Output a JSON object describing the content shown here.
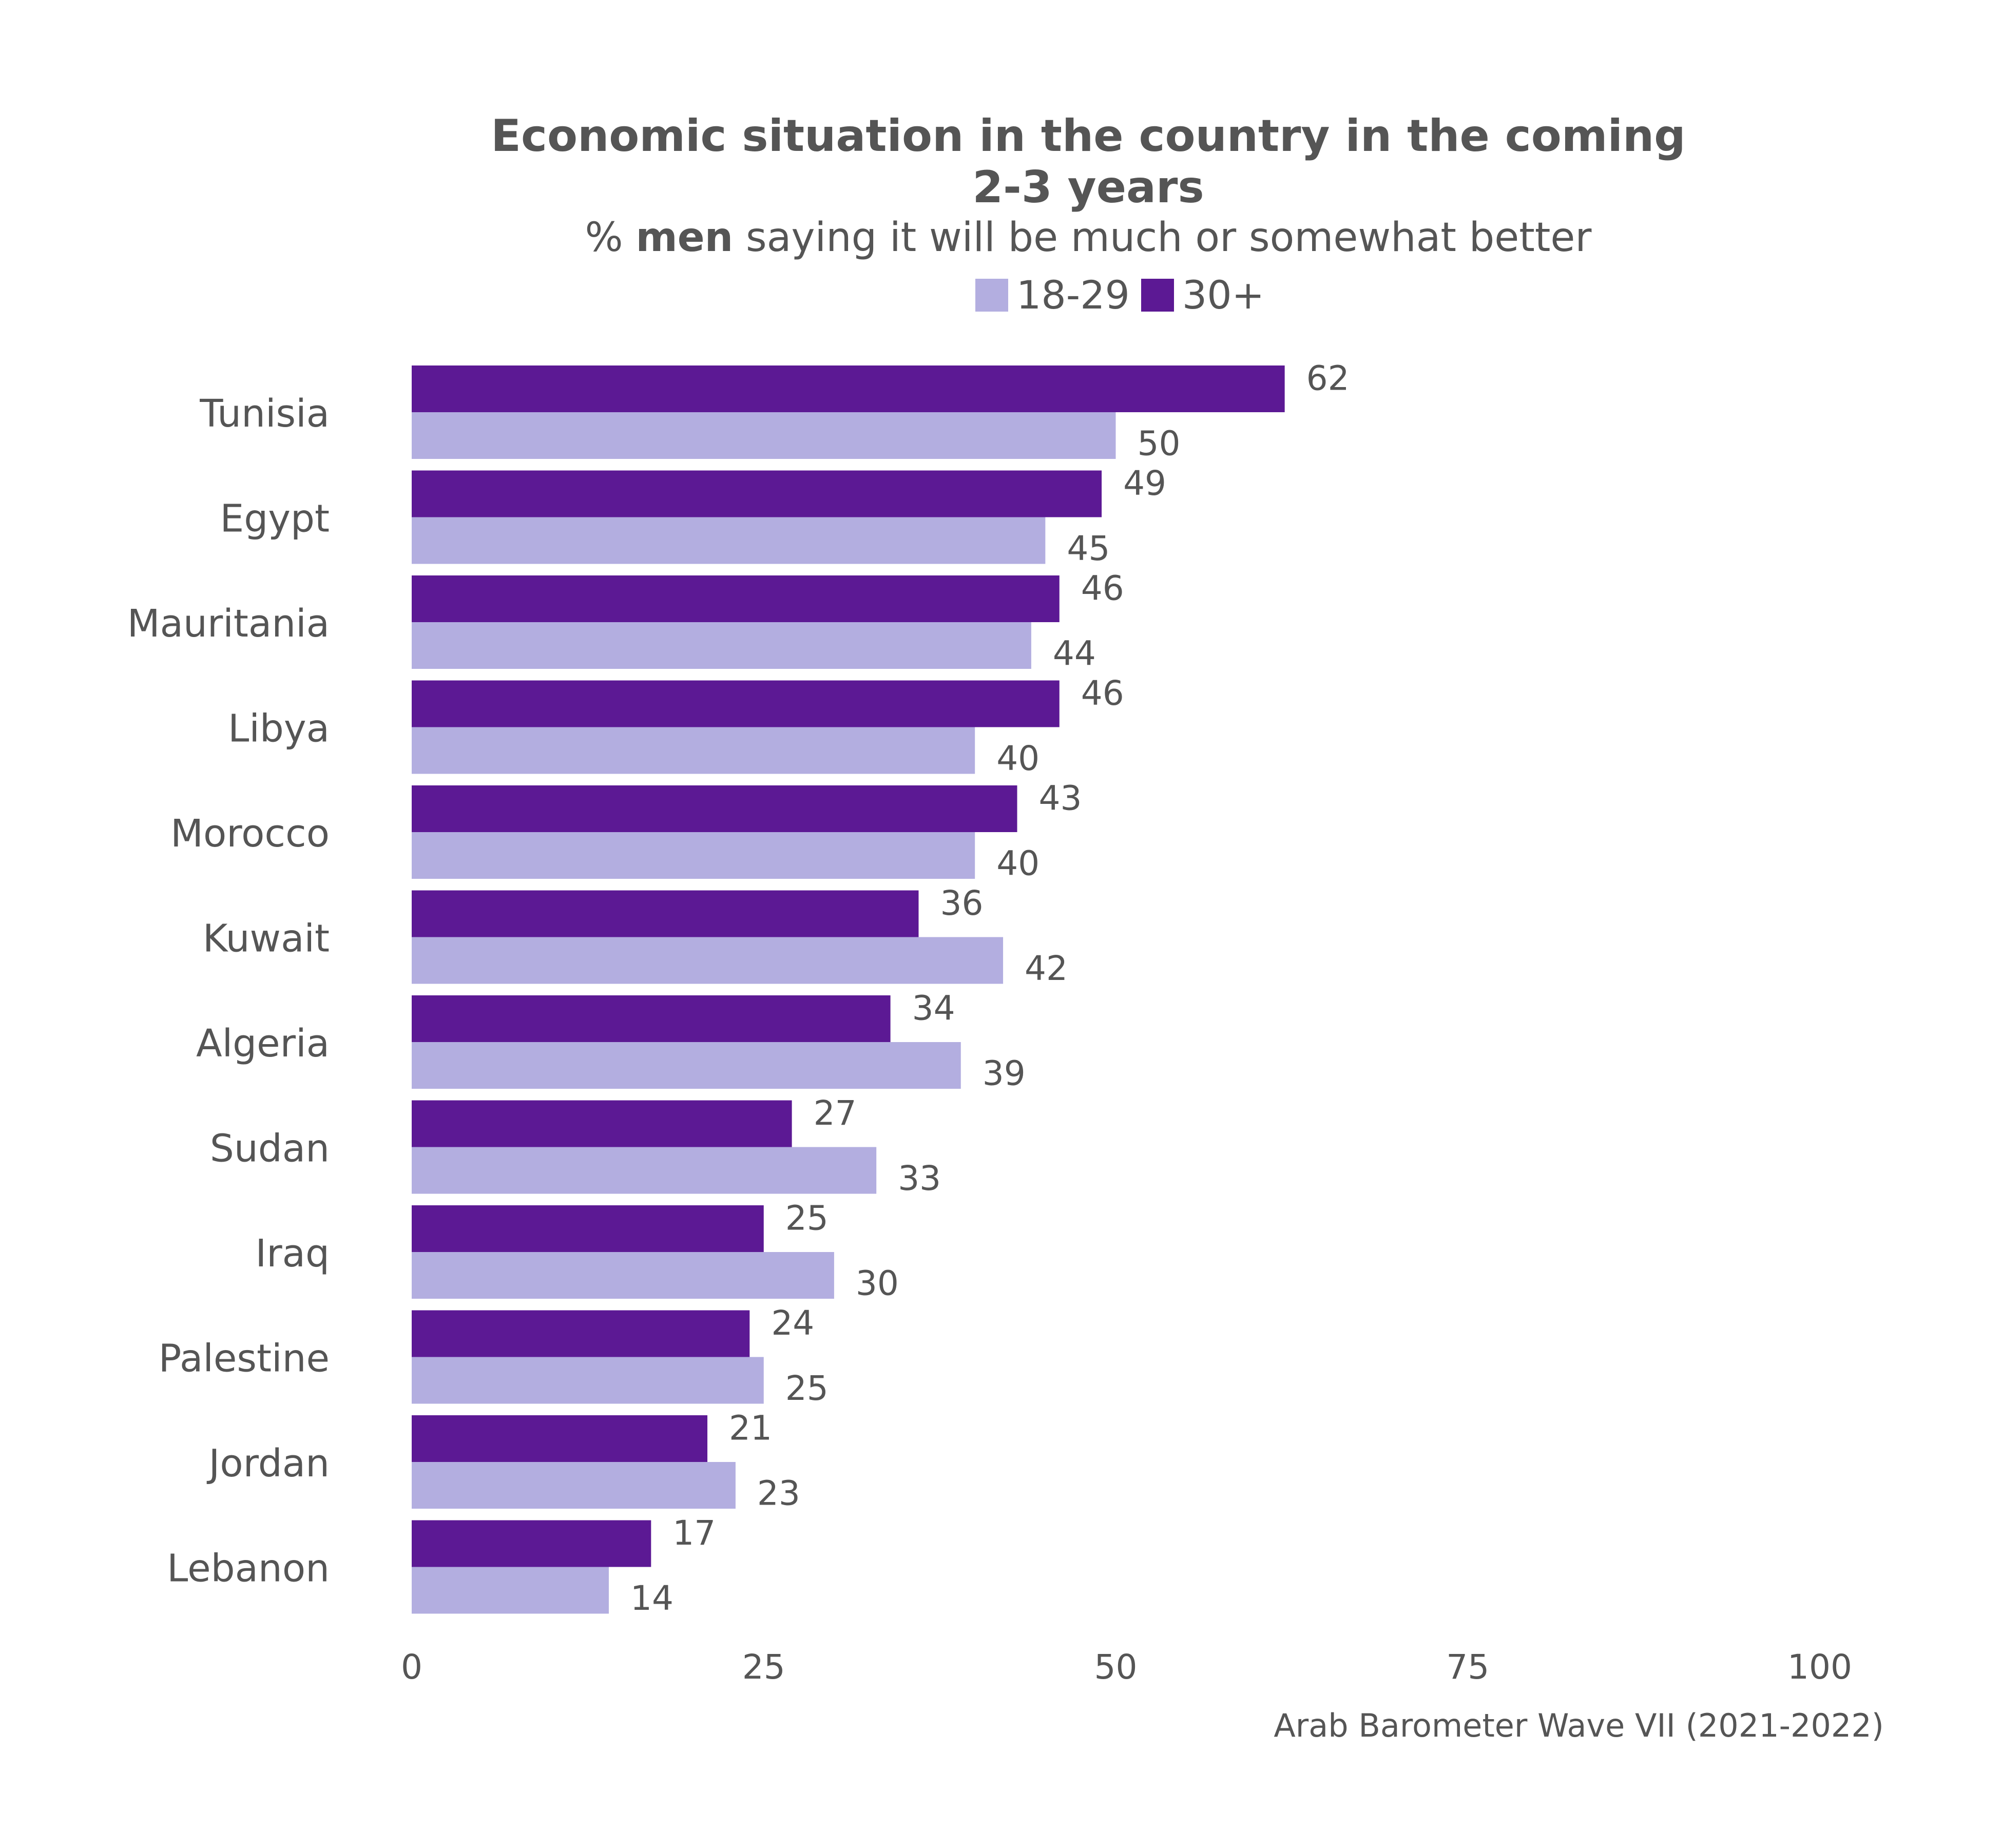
{
  "title": "Economic situation in the country in the coming 2-3 years",
  "subtitle_prefix": "% ",
  "subtitle_bold": "men",
  "subtitle_suffix": " saying it will be much or somewhat better",
  "source": "Arab Barometer Wave VII (2021-2022)",
  "colors": {
    "age_18_29": "#b3aee0",
    "age_30_plus": "#5c1994"
  },
  "chart_data": {
    "type": "bar",
    "orientation": "horizontal",
    "categories": [
      "Tunisia",
      "Egypt",
      "Mauritania",
      "Libya",
      "Morocco",
      "Kuwait",
      "Algeria",
      "Sudan",
      "Iraq",
      "Palestine",
      "Jordan",
      "Lebanon"
    ],
    "series": [
      {
        "name": "30+",
        "color": "#5c1994",
        "values": [
          62,
          49,
          46,
          46,
          43,
          36,
          34,
          27,
          25,
          24,
          21,
          17
        ]
      },
      {
        "name": "18-29",
        "color": "#b3aee0",
        "values": [
          50,
          45,
          44,
          40,
          40,
          42,
          39,
          33,
          30,
          25,
          23,
          14
        ]
      }
    ],
    "legend_order": [
      "18-29",
      "30+"
    ],
    "legend_position": "top",
    "xlim": [
      0,
      100
    ],
    "xticks": [
      0,
      25,
      50,
      75,
      100
    ],
    "grid": false,
    "data_labels": true
  }
}
